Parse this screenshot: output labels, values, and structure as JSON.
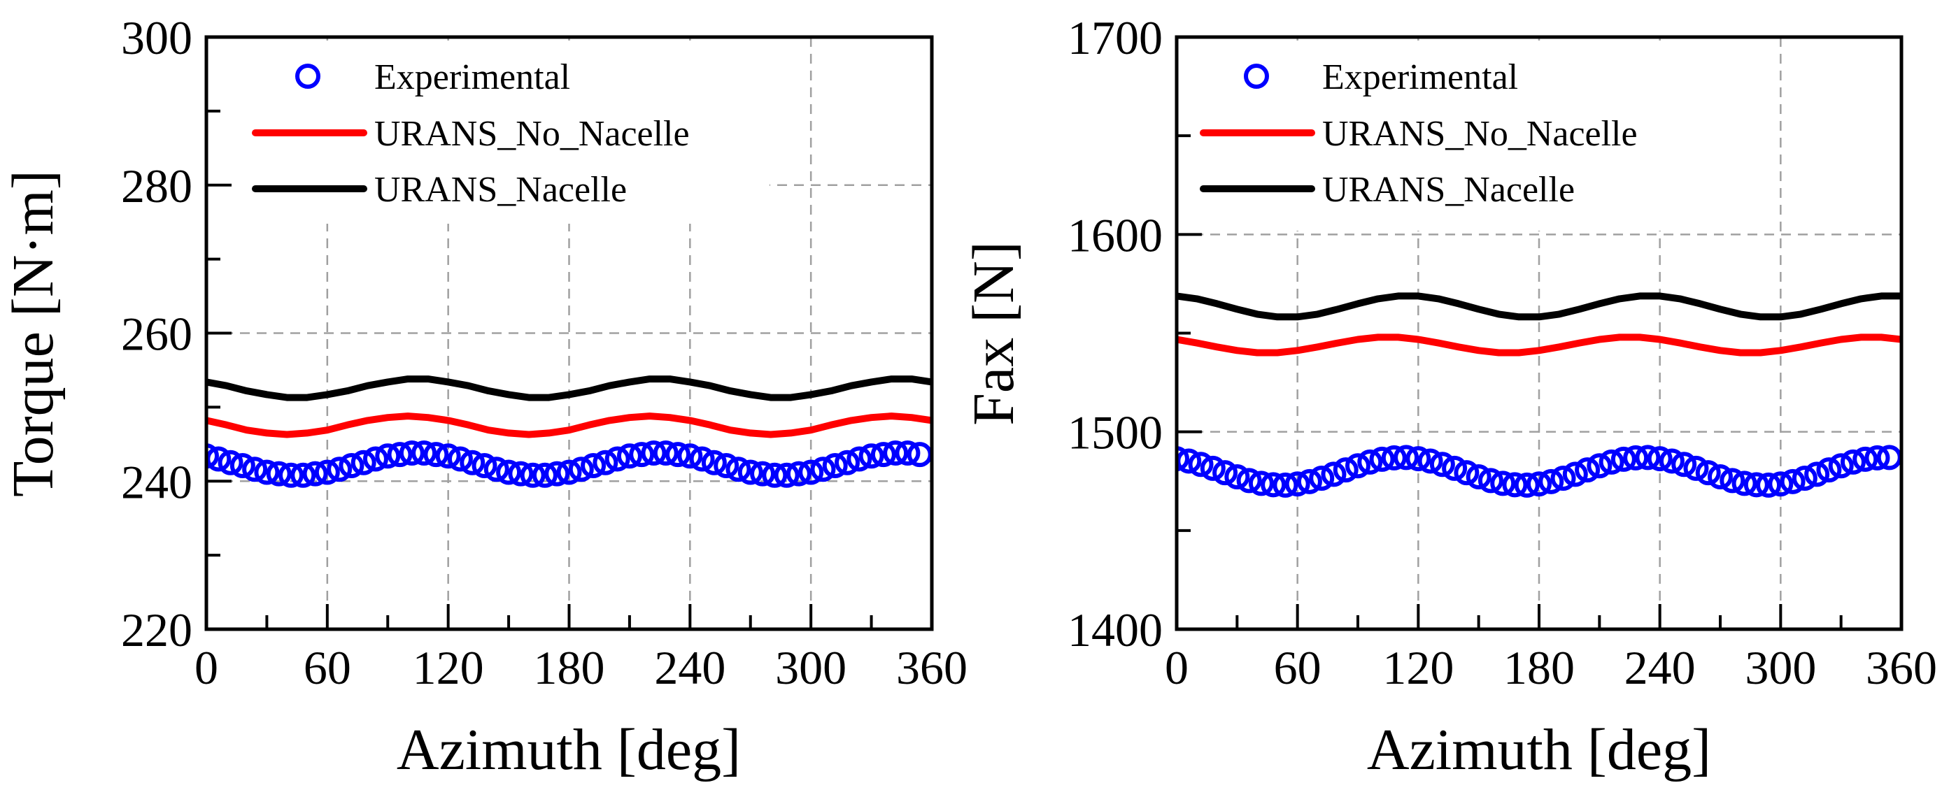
{
  "chart_data": [
    {
      "type": "line",
      "title": "",
      "xlabel": "Azimuth  [deg]",
      "ylabel": "Torque  [N·m]",
      "xlim": [
        0,
        360
      ],
      "ylim": [
        220,
        300
      ],
      "xticks": [
        0,
        60,
        120,
        180,
        240,
        300,
        360
      ],
      "yticks": [
        220,
        240,
        260,
        280,
        300
      ],
      "grid": true,
      "legend_position": "top-left",
      "series": [
        {
          "name": "Experimental",
          "style": "markers",
          "color": "#0000ff",
          "x": [
            0,
            6,
            12,
            18,
            24,
            30,
            36,
            42,
            48,
            54,
            60,
            66,
            72,
            78,
            84,
            90,
            96,
            102,
            108,
            114,
            120,
            126,
            132,
            138,
            144,
            150,
            156,
            162,
            168,
            174,
            180,
            186,
            192,
            198,
            204,
            210,
            216,
            222,
            228,
            234,
            240,
            246,
            252,
            258,
            264,
            270,
            276,
            282,
            288,
            294,
            300,
            306,
            312,
            318,
            324,
            330,
            336,
            342,
            348,
            354
          ],
          "y": [
            243.4,
            243.0,
            242.5,
            242.1,
            241.6,
            241.2,
            241.0,
            240.8,
            240.8,
            241.0,
            241.2,
            241.6,
            242.1,
            242.5,
            243.0,
            243.4,
            243.6,
            243.8,
            243.8,
            243.6,
            243.4,
            243.0,
            242.5,
            242.1,
            241.6,
            241.2,
            241.0,
            240.8,
            240.8,
            241.0,
            241.2,
            241.6,
            242.1,
            242.5,
            243.0,
            243.4,
            243.6,
            243.8,
            243.8,
            243.6,
            243.4,
            243.0,
            242.5,
            242.1,
            241.6,
            241.2,
            241.0,
            240.8,
            240.8,
            241.0,
            241.2,
            241.6,
            242.1,
            242.5,
            243.0,
            243.4,
            243.6,
            243.8,
            243.8,
            243.6
          ]
        },
        {
          "name": "URANS_No_Nacelle",
          "style": "line",
          "color": "#ff0000",
          "x": [
            0,
            10,
            20,
            30,
            40,
            50,
            60,
            70,
            80,
            90,
            100,
            110,
            120,
            130,
            140,
            150,
            160,
            170,
            180,
            190,
            200,
            210,
            220,
            230,
            240,
            250,
            260,
            270,
            280,
            290,
            300,
            310,
            320,
            330,
            340,
            350,
            360
          ],
          "y": [
            248.2,
            247.6,
            246.9,
            246.5,
            246.3,
            246.5,
            246.9,
            247.6,
            248.2,
            248.6,
            248.8,
            248.6,
            248.2,
            247.6,
            246.9,
            246.5,
            246.3,
            246.5,
            246.9,
            247.6,
            248.2,
            248.6,
            248.8,
            248.6,
            248.2,
            247.6,
            246.9,
            246.5,
            246.3,
            246.5,
            246.9,
            247.6,
            248.2,
            248.6,
            248.8,
            248.6,
            248.2
          ]
        },
        {
          "name": "URANS_Nacelle",
          "style": "line",
          "color": "#000000",
          "x": [
            0,
            10,
            20,
            30,
            40,
            50,
            60,
            70,
            80,
            90,
            100,
            110,
            120,
            130,
            140,
            150,
            160,
            170,
            180,
            190,
            200,
            210,
            220,
            230,
            240,
            250,
            260,
            270,
            280,
            290,
            300,
            310,
            320,
            330,
            340,
            350,
            360
          ],
          "y": [
            253.4,
            252.9,
            252.2,
            251.7,
            251.3,
            251.3,
            251.7,
            252.2,
            252.9,
            253.4,
            253.8,
            253.8,
            253.4,
            252.9,
            252.2,
            251.7,
            251.3,
            251.3,
            251.7,
            252.2,
            252.9,
            253.4,
            253.8,
            253.8,
            253.4,
            252.9,
            252.2,
            251.7,
            251.3,
            251.3,
            251.7,
            252.2,
            252.9,
            253.4,
            253.8,
            253.8,
            253.4
          ]
        }
      ]
    },
    {
      "type": "line",
      "title": "",
      "xlabel": "Azimuth  [deg]",
      "ylabel": "Fax [N]",
      "xlim": [
        0,
        360
      ],
      "ylim": [
        1400,
        1700
      ],
      "xticks": [
        0,
        60,
        120,
        180,
        240,
        300,
        360
      ],
      "yticks": [
        1400,
        1500,
        1600,
        1700
      ],
      "grid": true,
      "legend_position": "top-left",
      "series": [
        {
          "name": "Experimental",
          "style": "markers",
          "color": "#0000ff",
          "x": [
            0,
            6,
            12,
            18,
            24,
            30,
            36,
            42,
            48,
            54,
            60,
            66,
            72,
            78,
            84,
            90,
            96,
            102,
            108,
            114,
            120,
            126,
            132,
            138,
            144,
            150,
            156,
            162,
            168,
            174,
            180,
            186,
            192,
            198,
            204,
            210,
            216,
            222,
            228,
            234,
            240,
            246,
            252,
            258,
            264,
            270,
            276,
            282,
            288,
            294,
            300,
            306,
            312,
            318,
            324,
            330,
            336,
            342,
            348,
            354
          ],
          "y": [
            1486.4,
            1485.2,
            1483.5,
            1481.5,
            1479.3,
            1477.2,
            1475.3,
            1473.9,
            1473.2,
            1473.0,
            1473.6,
            1474.8,
            1476.5,
            1478.5,
            1480.7,
            1482.8,
            1484.7,
            1486.1,
            1486.8,
            1487.0,
            1486.4,
            1485.2,
            1483.5,
            1481.5,
            1479.3,
            1477.2,
            1475.3,
            1473.9,
            1473.2,
            1473.0,
            1473.6,
            1474.8,
            1476.5,
            1478.5,
            1480.7,
            1482.8,
            1484.7,
            1486.1,
            1486.8,
            1487.0,
            1486.4,
            1485.2,
            1483.5,
            1481.5,
            1479.3,
            1477.2,
            1475.3,
            1473.9,
            1473.2,
            1473.0,
            1473.6,
            1474.8,
            1476.5,
            1478.5,
            1480.7,
            1482.8,
            1484.7,
            1486.1,
            1486.8,
            1487.0
          ]
        },
        {
          "name": "URANS_No_Nacelle",
          "style": "line",
          "color": "#ff0000",
          "x": [
            0,
            10,
            20,
            30,
            40,
            50,
            60,
            70,
            80,
            90,
            100,
            110,
            120,
            130,
            140,
            150,
            160,
            170,
            180,
            190,
            200,
            210,
            220,
            230,
            240,
            250,
            260,
            270,
            280,
            290,
            300,
            310,
            320,
            330,
            340,
            350,
            360
          ],
          "y": [
            1546.8,
            1545.0,
            1543.0,
            1541.2,
            1540.1,
            1540.1,
            1541.2,
            1543.0,
            1545.0,
            1546.8,
            1547.9,
            1547.9,
            1546.8,
            1545.0,
            1543.0,
            1541.2,
            1540.1,
            1540.1,
            1541.2,
            1543.0,
            1545.0,
            1546.8,
            1547.9,
            1547.9,
            1546.8,
            1545.0,
            1543.0,
            1541.2,
            1540.1,
            1540.1,
            1541.2,
            1543.0,
            1545.0,
            1546.8,
            1547.9,
            1547.9,
            1546.8
          ]
        },
        {
          "name": "URANS_Nacelle",
          "style": "line",
          "color": "#000000",
          "x": [
            0,
            10,
            20,
            30,
            40,
            50,
            60,
            70,
            80,
            90,
            100,
            110,
            120,
            130,
            140,
            150,
            160,
            170,
            180,
            190,
            200,
            210,
            220,
            230,
            240,
            250,
            260,
            270,
            280,
            290,
            300,
            310,
            320,
            330,
            340,
            350,
            360
          ],
          "y": [
            1568.8,
            1567.4,
            1564.9,
            1562.1,
            1559.6,
            1558.2,
            1558.2,
            1559.6,
            1562.1,
            1564.9,
            1567.4,
            1568.8,
            1568.8,
            1567.4,
            1564.9,
            1562.1,
            1559.6,
            1558.2,
            1558.2,
            1559.6,
            1562.1,
            1564.9,
            1567.4,
            1568.8,
            1568.8,
            1567.4,
            1564.9,
            1562.1,
            1559.6,
            1558.2,
            1558.2,
            1559.6,
            1562.1,
            1564.9,
            1567.4,
            1568.8,
            1568.8
          ]
        }
      ]
    }
  ]
}
